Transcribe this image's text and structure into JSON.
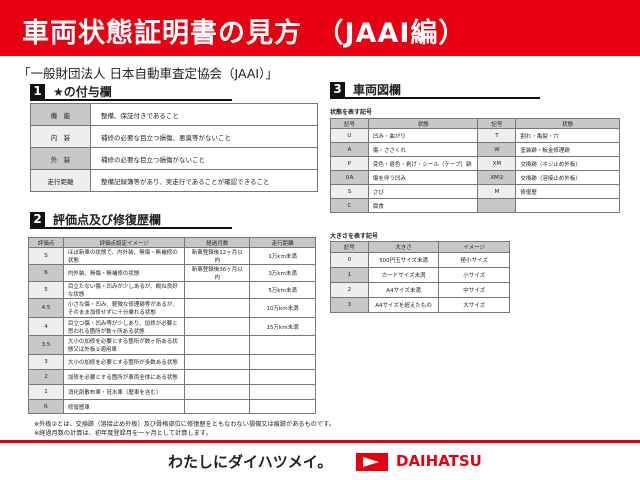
{
  "header": {
    "title": "車両状態証明書の見方　（JAAI編）"
  },
  "organization": "「一般財団法人 日本自動車査定協会（JAAI）」",
  "section1": {
    "num": "1",
    "title": "★の付与欄",
    "rows": [
      {
        "k": "機　能",
        "v": "整備、保証付きであること"
      },
      {
        "k": "内　装",
        "v": "補修の必要な目立つ損傷、悪臭等がないこと"
      },
      {
        "k": "外　装",
        "v": "補修の必要な目立つ損傷がないこと"
      },
      {
        "k": "走行距離",
        "v": "整備記録簿等があり、実走行であることが確認できること"
      }
    ]
  },
  "section2": {
    "num": "2",
    "title": "評価点及び修復歴欄",
    "headers": [
      "評価点",
      "評価点設定イメージ",
      "経過月数",
      "走行距離"
    ],
    "rows": [
      [
        "S",
        "ほぼ新車の状態で、内外装、無傷・無補修の状態",
        "新車登録後12ヶ月以内",
        "1万km未満"
      ],
      [
        "6",
        "内外装、無傷・無補修の状態",
        "新車登録後36ヶ月以内",
        "3万km未満"
      ],
      [
        "5",
        "目立たない傷・凹みが少しあるが、概ね良好な状態",
        "",
        "5万km未満"
      ],
      [
        "4.5",
        "小さな傷・凹み、軽微な修理跡等があるが、そのまま加修せずに十分乗れる状態",
        "",
        "10万km未満"
      ],
      [
        "4",
        "目立つ傷・凹み等が少しあり、加修が必要と思われる箇所が数ヶ所ある状態",
        "",
        "15万km未満"
      ],
      [
        "3.5",
        "大小の加修を必要とする箇所が数ヶ所ある状態又は外板②適用車",
        "",
        ""
      ],
      [
        "3",
        "大小の加修を必要とする箇所が多数ある状態",
        "",
        ""
      ],
      [
        "2",
        "加修を必要とする箇所が車両全体にある状態",
        "",
        ""
      ],
      [
        "1",
        "消化剤散布車・冠水車（歴車を含む）",
        "",
        ""
      ],
      [
        "R",
        "修復歴車",
        "",
        ""
      ]
    ],
    "notes": [
      "※外板②とは、交換跡（溶接止め外板）及び骨格部位に修復歴をともなわない損傷又は痕跡があるものです。",
      "※経過月数の計算は、初年度登録月を一ヶ月として計算します。"
    ]
  },
  "section3": {
    "num": "3",
    "title": "車両図欄",
    "sub1": "状態を表す記号",
    "headers": [
      "記号",
      "状態",
      "記号",
      "状態"
    ],
    "rows": [
      [
        "U",
        "凹み・曲がり",
        "T",
        "割れ・亀裂・穴"
      ],
      [
        "A",
        "傷・ささくれ",
        "W",
        "塗装跡・板金修理跡"
      ],
      [
        "P",
        "変色・退色・剥げ・シール（テープ）跡",
        "XM",
        "交換跡（ネジ止め外板）"
      ],
      [
        "UA",
        "傷を伴う凹み",
        "XM②",
        "交換跡（溶接止め外板）"
      ],
      [
        "S",
        "さび",
        "M",
        "修復歴"
      ],
      [
        "C",
        "腐食",
        "",
        ""
      ]
    ],
    "sub2": "大きさを表す記号",
    "size_headers": [
      "記号",
      "大きさ",
      "イメージ"
    ],
    "size_rows": [
      [
        "0",
        "500円玉サイズ未満",
        "極小サイズ"
      ],
      [
        "1",
        "カードサイズ未満",
        "小サイズ"
      ],
      [
        "2",
        "A4サイズ未満",
        "中サイズ"
      ],
      [
        "3",
        "A4サイズを超えたもの",
        "大サイズ"
      ]
    ]
  },
  "footer": {
    "slogan": "わたしにダイハツメイ。",
    "brand": "DAIHATSU"
  },
  "colors": {
    "accent": "#e60012",
    "shade": "#c8c8c8"
  }
}
